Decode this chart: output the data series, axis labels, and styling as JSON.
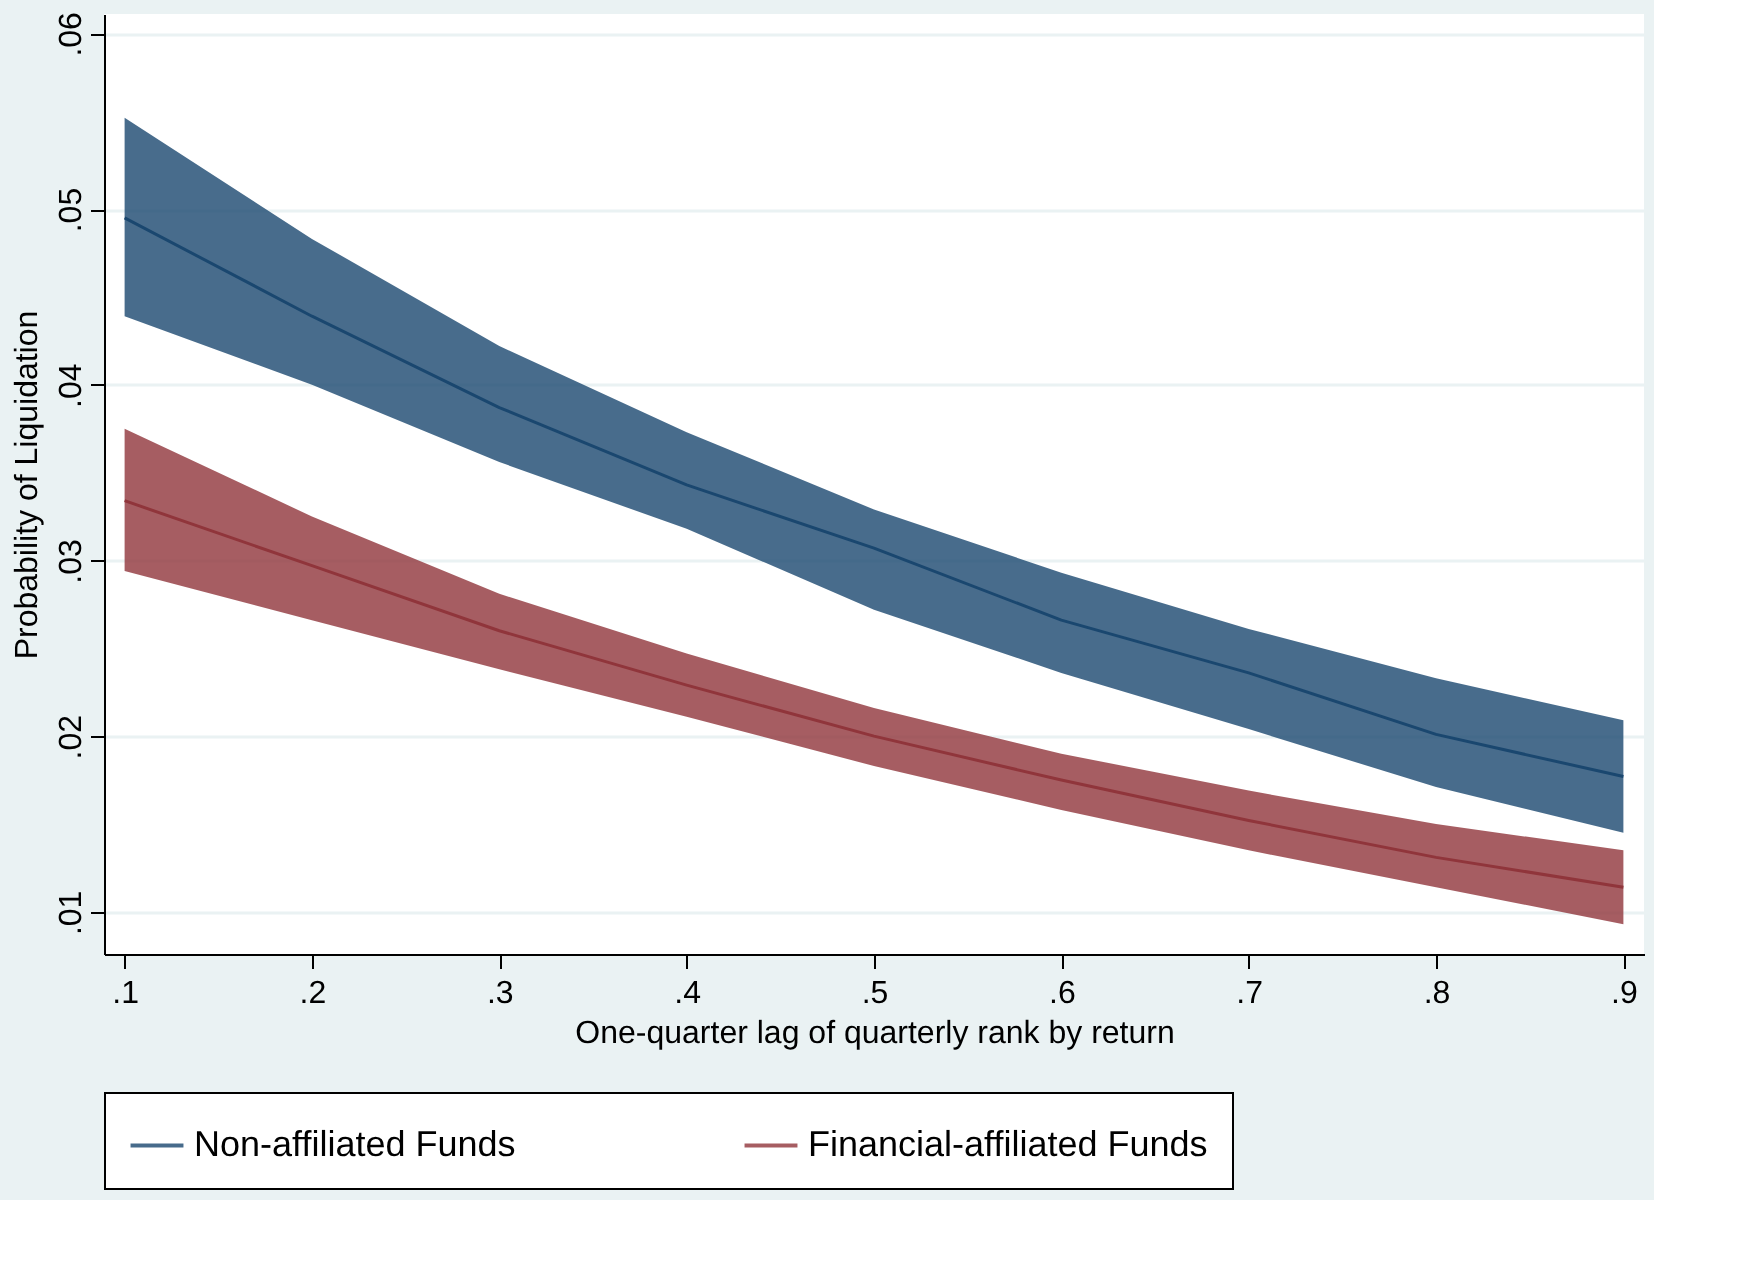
{
  "chart_data": {
    "type": "line",
    "xlabel": "One-quarter lag of quarterly rank by return",
    "ylabel": "Probability of Liquidation",
    "x": [
      0.1,
      0.2,
      0.3,
      0.4,
      0.5,
      0.6,
      0.7,
      0.8,
      0.9
    ],
    "series": [
      {
        "name": "Non-affiliated Funds",
        "color": "#1a476f",
        "values": [
          0.0495,
          0.0439,
          0.0387,
          0.0343,
          0.0307,
          0.0266,
          0.0236,
          0.0201,
          0.0177
        ],
        "lower": [
          0.0439,
          0.04,
          0.0356,
          0.0318,
          0.0272,
          0.0236,
          0.0204,
          0.0171,
          0.0145
        ],
        "upper": [
          0.0552,
          0.0483,
          0.0422,
          0.0373,
          0.0329,
          0.0293,
          0.0261,
          0.0233,
          0.0209
        ]
      },
      {
        "name": "Financial-affiliated Funds",
        "color": "#90353b",
        "values": [
          0.0334,
          0.0297,
          0.026,
          0.0229,
          0.02,
          0.0175,
          0.0152,
          0.0131,
          0.0114
        ],
        "lower": [
          0.0294,
          0.0266,
          0.0238,
          0.0211,
          0.0183,
          0.0158,
          0.0135,
          0.0114,
          0.0093
        ],
        "upper": [
          0.0375,
          0.0325,
          0.0281,
          0.0247,
          0.0216,
          0.019,
          0.0169,
          0.015,
          0.0135
        ]
      }
    ],
    "xlim": [
      0.089,
      0.911
    ],
    "ylim": [
      0.0076,
      0.0611
    ],
    "xticks": [
      {
        "value": 0.1,
        "label": ".1"
      },
      {
        "value": 0.2,
        "label": ".2"
      },
      {
        "value": 0.3,
        "label": ".3"
      },
      {
        "value": 0.4,
        "label": ".4"
      },
      {
        "value": 0.5,
        "label": ".5"
      },
      {
        "value": 0.6,
        "label": ".6"
      },
      {
        "value": 0.7,
        "label": ".7"
      },
      {
        "value": 0.8,
        "label": ".8"
      },
      {
        "value": 0.9,
        "label": ".9"
      }
    ],
    "yticks": [
      {
        "value": 0.01,
        "label": ".01"
      },
      {
        "value": 0.02,
        "label": ".02"
      },
      {
        "value": 0.03,
        "label": ".03"
      },
      {
        "value": 0.04,
        "label": ".04"
      },
      {
        "value": 0.05,
        "label": ".05"
      },
      {
        "value": 0.06,
        "label": ".06"
      }
    ],
    "grid": "y",
    "legend": "bottom"
  }
}
